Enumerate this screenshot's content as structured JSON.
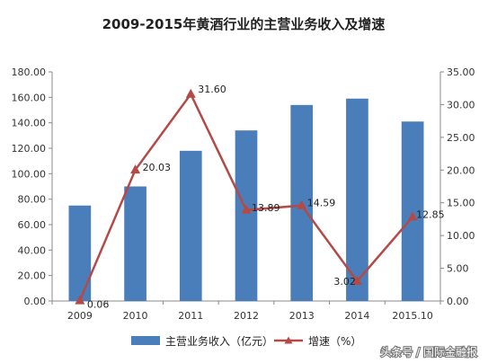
{
  "chart_data": {
    "type": "bar",
    "title": "2009-2015年黄酒行业的主营业务收入及增速",
    "categories": [
      "2009",
      "2010",
      "2011",
      "2012",
      "2013",
      "2014",
      "2015.10"
    ],
    "series": [
      {
        "name": "主营业务收入（亿元）",
        "type": "bar",
        "axis": "left",
        "color": "#4a7ebb",
        "values": [
          75,
          90,
          118,
          134,
          154,
          159,
          141
        ]
      },
      {
        "name": "增速（%）",
        "type": "line",
        "axis": "right",
        "color": "#b44a48",
        "values": [
          0.06,
          20.03,
          31.6,
          13.89,
          14.59,
          3.02,
          12.85
        ],
        "labels": [
          "0.06",
          "20.03",
          "31.60",
          "13.89",
          "14.59",
          "3.02",
          "12.85"
        ]
      }
    ],
    "y_left": {
      "ylim": [
        0,
        180
      ],
      "ticks": [
        "0.00",
        "20.00",
        "40.00",
        "60.00",
        "80.00",
        "100.00",
        "120.00",
        "140.00",
        "160.00",
        "180.00"
      ]
    },
    "y_right": {
      "ylim": [
        0,
        35
      ],
      "ticks": [
        "0.00",
        "5.00",
        "10.00",
        "15.00",
        "20.00",
        "25.00",
        "30.00",
        "35.00"
      ]
    },
    "grid": false,
    "legend_position": "bottom"
  },
  "watermark": "头条号 / 国际金融报"
}
